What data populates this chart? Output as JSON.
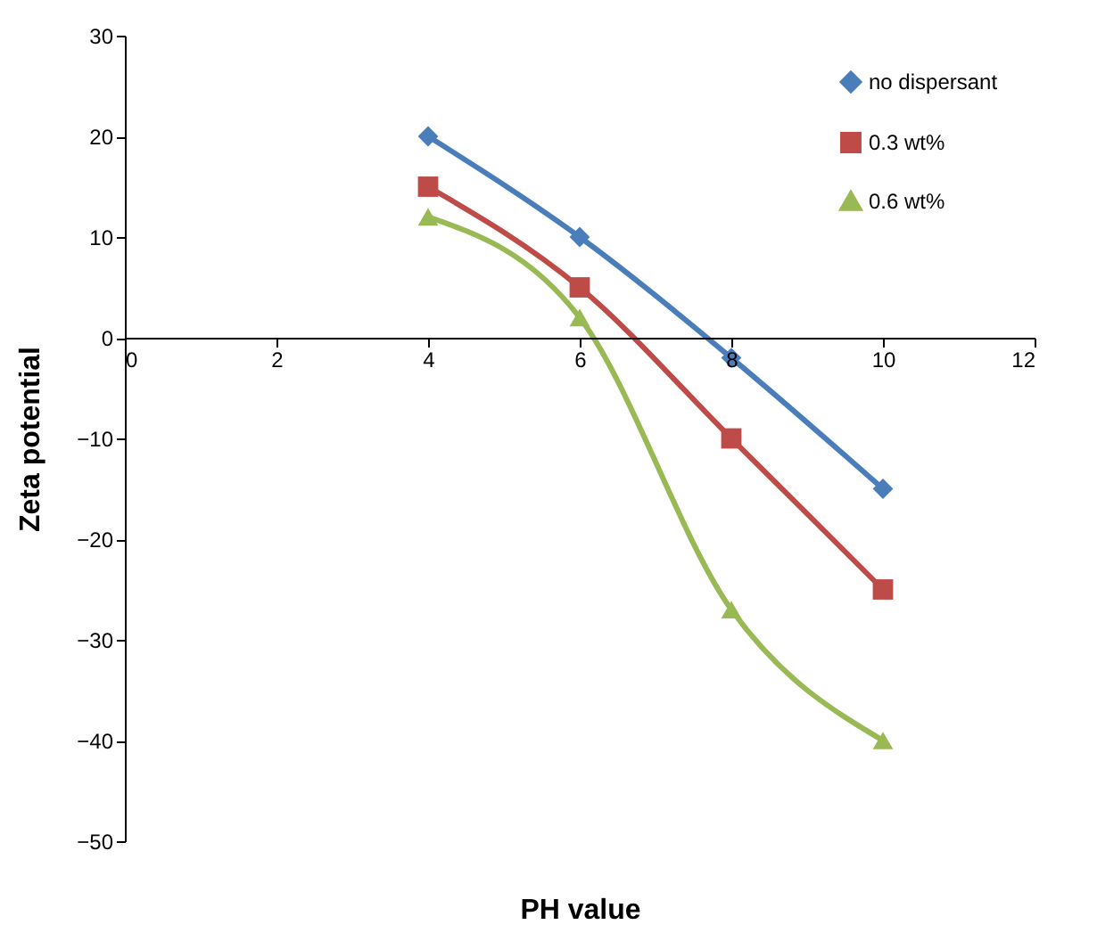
{
  "chart_data": {
    "type": "line",
    "xlabel": "PH value",
    "ylabel": "Zeta potential",
    "x": [
      4,
      6,
      8,
      10
    ],
    "series": [
      {
        "name": "no dispersant",
        "color": "#4a7ebb",
        "marker": "diamond",
        "values": [
          20,
          10,
          -2,
          -15
        ]
      },
      {
        "name": "0.3 wt%",
        "color": "#be4b48",
        "marker": "square",
        "values": [
          15,
          5,
          -10,
          -25
        ]
      },
      {
        "name": "0.6 wt%",
        "color": "#98b954",
        "marker": "triangle",
        "values": [
          12,
          2,
          -27,
          -40
        ]
      }
    ],
    "xlim": [
      0,
      12
    ],
    "xticks": [
      0,
      2,
      4,
      6,
      8,
      10,
      12
    ],
    "ylim": [
      -50,
      30
    ],
    "yticks": [
      -50,
      -40,
      -30,
      -20,
      -10,
      0,
      10,
      20,
      30
    ],
    "grid": false,
    "legend": "top right",
    "line_style": "solid"
  }
}
